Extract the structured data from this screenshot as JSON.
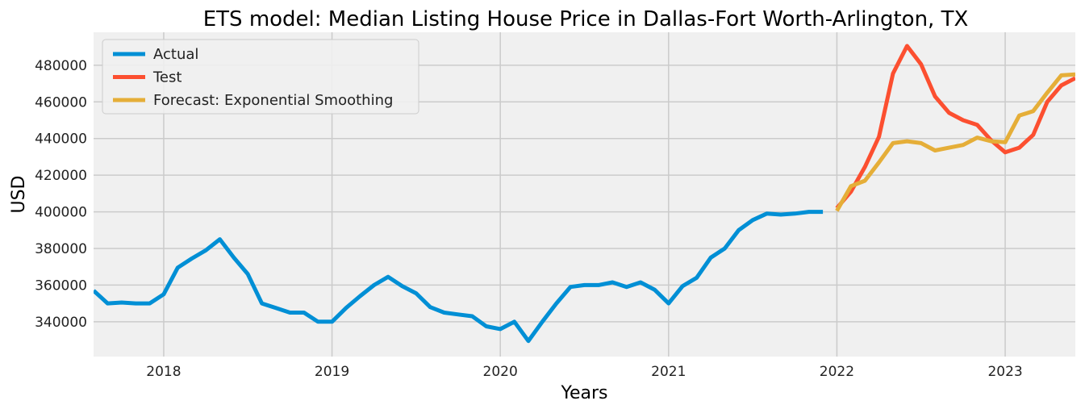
{
  "chart_data": {
    "type": "line",
    "title": "ETS model: Median Listing House Price in Dallas-Fort Worth-Arlington, TX",
    "xlabel": "Years",
    "ylabel": "USD",
    "x_ticks": [
      "2018",
      "2019",
      "2020",
      "2021",
      "2022",
      "2023"
    ],
    "y_ticks": [
      "340000",
      "360000",
      "380000",
      "400000",
      "420000",
      "440000",
      "460000",
      "480000"
    ],
    "xlim": [
      "2017-08",
      "2023-06"
    ],
    "ylim": [
      321000,
      498000
    ],
    "grid": true,
    "legend_position": "top-left",
    "series": [
      {
        "name": "Actual",
        "color": "#008fd5",
        "points": [
          [
            "2017-08",
            357000
          ],
          [
            "2017-09",
            350000
          ],
          [
            "2017-10",
            350500
          ],
          [
            "2017-11",
            350000
          ],
          [
            "2017-12",
            350000
          ],
          [
            "2018-01",
            355000
          ],
          [
            "2018-02",
            369500
          ],
          [
            "2018-03",
            374500
          ],
          [
            "2018-04",
            379000
          ],
          [
            "2018-05",
            385000
          ],
          [
            "2018-06",
            375000
          ],
          [
            "2018-07",
            366000
          ],
          [
            "2018-08",
            350000
          ],
          [
            "2018-09",
            347500
          ],
          [
            "2018-10",
            345000
          ],
          [
            "2018-11",
            345000
          ],
          [
            "2018-12",
            340000
          ],
          [
            "2019-01",
            340000
          ],
          [
            "2019-02",
            347500
          ],
          [
            "2019-03",
            354000
          ],
          [
            "2019-04",
            360000
          ],
          [
            "2019-05",
            364500
          ],
          [
            "2019-06",
            359500
          ],
          [
            "2019-07",
            355500
          ],
          [
            "2019-08",
            348000
          ],
          [
            "2019-09",
            345000
          ],
          [
            "2019-10",
            344000
          ],
          [
            "2019-11",
            343000
          ],
          [
            "2019-12",
            337500
          ],
          [
            "2020-01",
            336000
          ],
          [
            "2020-02",
            340000
          ],
          [
            "2020-03",
            329500
          ],
          [
            "2020-04",
            340000
          ],
          [
            "2020-05",
            350000
          ],
          [
            "2020-06",
            359000
          ],
          [
            "2020-07",
            360000
          ],
          [
            "2020-08",
            360000
          ],
          [
            "2020-09",
            361500
          ],
          [
            "2020-10",
            359000
          ],
          [
            "2020-11",
            361500
          ],
          [
            "2020-12",
            357500
          ],
          [
            "2021-01",
            350000
          ],
          [
            "2021-02",
            359500
          ],
          [
            "2021-03",
            364000
          ],
          [
            "2021-04",
            375000
          ],
          [
            "2021-05",
            380000
          ],
          [
            "2021-06",
            390000
          ],
          [
            "2021-07",
            395500
          ],
          [
            "2021-08",
            399000
          ],
          [
            "2021-09",
            398500
          ],
          [
            "2021-10",
            399000
          ],
          [
            "2021-11",
            400000
          ],
          [
            "2021-12",
            400000
          ]
        ]
      },
      {
        "name": "Test",
        "color": "#fc4f30",
        "points": [
          [
            "2022-01",
            402000
          ],
          [
            "2022-02",
            411000
          ],
          [
            "2022-03",
            424500
          ],
          [
            "2022-04",
            441000
          ],
          [
            "2022-05",
            475500
          ],
          [
            "2022-06",
            490500
          ],
          [
            "2022-07",
            480500
          ],
          [
            "2022-08",
            463000
          ],
          [
            "2022-09",
            454000
          ],
          [
            "2022-10",
            450000
          ],
          [
            "2022-11",
            447500
          ],
          [
            "2022-12",
            439000
          ],
          [
            "2023-01",
            432500
          ],
          [
            "2023-02",
            435000
          ],
          [
            "2023-03",
            442000
          ],
          [
            "2023-04",
            460000
          ],
          [
            "2023-05",
            469000
          ],
          [
            "2023-06",
            473000
          ]
        ]
      },
      {
        "name": "Forecast: Exponential Smoothing",
        "color": "#e5ae38",
        "points": [
          [
            "2022-01",
            400500
          ],
          [
            "2022-02",
            414000
          ],
          [
            "2022-03",
            417000
          ],
          [
            "2022-04",
            427000
          ],
          [
            "2022-05",
            437500
          ],
          [
            "2022-06",
            438500
          ],
          [
            "2022-07",
            437500
          ],
          [
            "2022-08",
            433500
          ],
          [
            "2022-09",
            435000
          ],
          [
            "2022-10",
            436500
          ],
          [
            "2022-11",
            440500
          ],
          [
            "2022-12",
            438500
          ],
          [
            "2023-01",
            438000
          ],
          [
            "2023-02",
            452500
          ],
          [
            "2023-03",
            455000
          ],
          [
            "2023-04",
            465000
          ],
          [
            "2023-05",
            474500
          ],
          [
            "2023-06",
            475000
          ]
        ]
      }
    ]
  }
}
